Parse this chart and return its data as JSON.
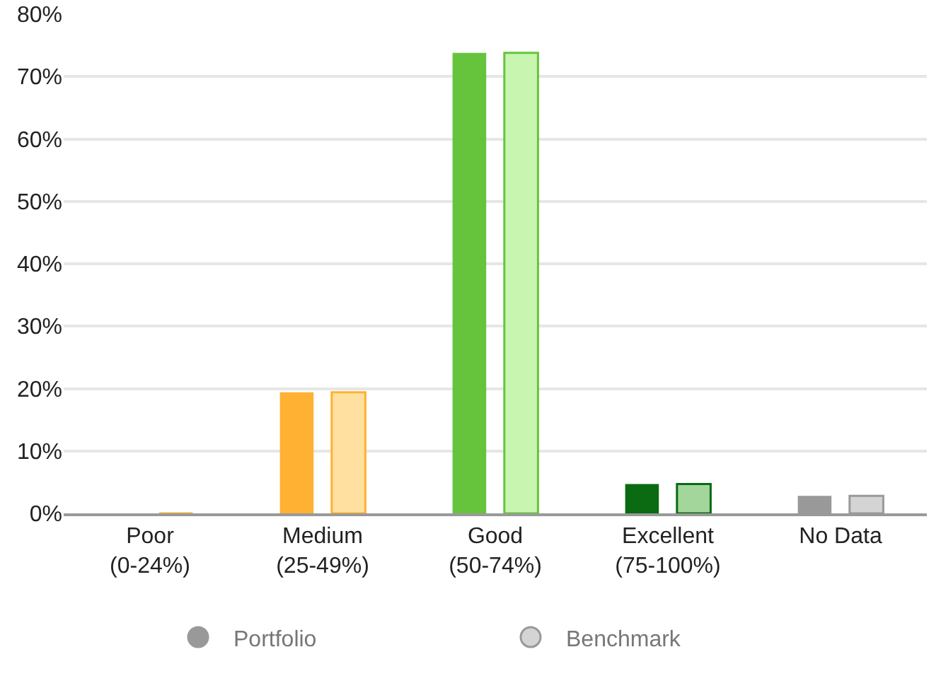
{
  "chart_data": {
    "type": "bar",
    "categories": [
      "Poor\n(0-24%)",
      "Medium\n(25-49%)",
      "Good\n(50-74%)",
      "Excellent\n(75-100%)",
      "No Data"
    ],
    "series": [
      {
        "name": "Portfolio",
        "color": "#999999",
        "colors": [
          "#ffb133",
          "#ffb133",
          "#66c43c",
          "#0a6b12",
          "#999999"
        ],
        "values": [
          0,
          19.4,
          73.8,
          4.7,
          2.8
        ]
      },
      {
        "name": "Benchmark",
        "color": "#d4d4d4",
        "colors": [
          "#ffe0a0",
          "#ffe0a0",
          "#c8f5b0",
          "#a3d69a",
          "#d4d4d4"
        ],
        "values": [
          0,
          19.4,
          73.8,
          4.7,
          2.8
        ]
      }
    ],
    "ylim": [
      0,
      80
    ],
    "yticks": [
      {
        "value": 0,
        "label": "0%"
      },
      {
        "value": 10,
        "label": "10%"
      },
      {
        "value": 20,
        "label": "20%"
      },
      {
        "value": 30,
        "label": "30%"
      },
      {
        "value": 40,
        "label": "40%"
      },
      {
        "value": 50,
        "label": "50%"
      },
      {
        "value": 60,
        "label": "60%"
      },
      {
        "value": 70,
        "label": "70%"
      },
      {
        "value": 80,
        "label": "80%"
      }
    ],
    "grid": "y",
    "legend": "bottom"
  }
}
